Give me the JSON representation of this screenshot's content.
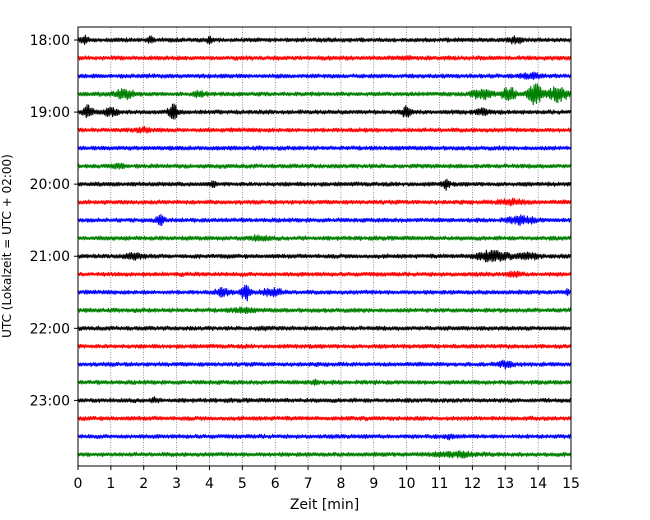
{
  "chart_data": {
    "type": "line",
    "title": "",
    "xlabel": "Zeit  [min]",
    "ylabel": "UTC (Lokalzeit = UTC + 02:00)",
    "xlim": [
      0,
      15
    ],
    "x_ticks": [
      0,
      1,
      2,
      3,
      4,
      5,
      6,
      7,
      8,
      9,
      10,
      11,
      12,
      13,
      14,
      15
    ],
    "y_ticks": [
      "18:00",
      "19:00",
      "20:00",
      "21:00",
      "22:00",
      "23:00"
    ],
    "grid": "vertical-dotted",
    "trace_interval_minutes": 15,
    "color_cycle": [
      "#000000",
      "#ff0000",
      "#0000ff",
      "#008000"
    ],
    "traces": [
      {
        "start": "18:00",
        "color": "#000000",
        "events": [
          {
            "t": 0.2,
            "amp": 1.5,
            "w": 0.1
          },
          {
            "t": 2.2,
            "amp": 1.0,
            "w": 0.1
          },
          {
            "t": 4.0,
            "amp": 1.0,
            "w": 0.1
          },
          {
            "t": 13.3,
            "amp": 1.2,
            "w": 0.2
          }
        ]
      },
      {
        "start": "18:15",
        "color": "#ff0000",
        "events": [
          {
            "t": 10.0,
            "amp": 0.8,
            "w": 0.15
          }
        ]
      },
      {
        "start": "18:30",
        "color": "#0000ff",
        "events": [
          {
            "t": 13.8,
            "amp": 1.0,
            "w": 0.3
          }
        ]
      },
      {
        "start": "18:45",
        "color": "#008000",
        "events": [
          {
            "t": 1.4,
            "amp": 1.8,
            "w": 0.3
          },
          {
            "t": 3.7,
            "amp": 1.0,
            "w": 0.2
          },
          {
            "t": 12.3,
            "amp": 2.0,
            "w": 0.3
          },
          {
            "t": 13.1,
            "amp": 3.0,
            "w": 0.2
          },
          {
            "t": 13.9,
            "amp": 4.5,
            "w": 0.2
          },
          {
            "t": 14.6,
            "amp": 3.0,
            "w": 0.3
          }
        ]
      },
      {
        "start": "19:00",
        "color": "#000000",
        "events": [
          {
            "t": 0.3,
            "amp": 2.5,
            "w": 0.15
          },
          {
            "t": 1.0,
            "amp": 1.5,
            "w": 0.2
          },
          {
            "t": 2.9,
            "amp": 3.0,
            "w": 0.15
          },
          {
            "t": 10.0,
            "amp": 2.5,
            "w": 0.12
          },
          {
            "t": 12.3,
            "amp": 1.2,
            "w": 0.2
          }
        ]
      },
      {
        "start": "19:15",
        "color": "#ff0000",
        "events": [
          {
            "t": 2.0,
            "amp": 0.8,
            "w": 0.2
          }
        ]
      },
      {
        "start": "19:30",
        "color": "#0000ff",
        "events": []
      },
      {
        "start": "19:45",
        "color": "#008000",
        "events": [
          {
            "t": 1.2,
            "amp": 0.8,
            "w": 0.2
          }
        ]
      },
      {
        "start": "20:00",
        "color": "#000000",
        "events": [
          {
            "t": 4.1,
            "amp": 1.0,
            "w": 0.1
          },
          {
            "t": 11.2,
            "amp": 2.2,
            "w": 0.1
          }
        ]
      },
      {
        "start": "20:15",
        "color": "#ff0000",
        "events": [
          {
            "t": 13.2,
            "amp": 1.0,
            "w": 0.4
          }
        ]
      },
      {
        "start": "20:30",
        "color": "#0000ff",
        "events": [
          {
            "t": 2.5,
            "amp": 2.0,
            "w": 0.12
          },
          {
            "t": 13.5,
            "amp": 1.5,
            "w": 0.4
          }
        ]
      },
      {
        "start": "20:45",
        "color": "#008000",
        "events": [
          {
            "t": 5.5,
            "amp": 0.8,
            "w": 0.3
          }
        ]
      },
      {
        "start": "21:00",
        "color": "#000000",
        "events": [
          {
            "t": 1.7,
            "amp": 1.2,
            "w": 0.3
          },
          {
            "t": 12.6,
            "amp": 2.0,
            "w": 0.5
          },
          {
            "t": 13.7,
            "amp": 1.2,
            "w": 0.3
          }
        ]
      },
      {
        "start": "21:15",
        "color": "#ff0000",
        "events": [
          {
            "t": 13.3,
            "amp": 0.8,
            "w": 0.2
          }
        ]
      },
      {
        "start": "21:30",
        "color": "#0000ff",
        "events": [
          {
            "t": 4.4,
            "amp": 1.5,
            "w": 0.2
          },
          {
            "t": 5.1,
            "amp": 3.5,
            "w": 0.15
          },
          {
            "t": 5.9,
            "amp": 1.5,
            "w": 0.3
          },
          {
            "t": 14.9,
            "amp": 1.0,
            "w": 0.05
          }
        ]
      },
      {
        "start": "21:45",
        "color": "#008000",
        "events": [
          {
            "t": 5.0,
            "amp": 0.8,
            "w": 0.3
          }
        ]
      },
      {
        "start": "22:00",
        "color": "#000000",
        "events": [
          {
            "t": 5.6,
            "amp": 0.8,
            "w": 0.1
          }
        ]
      },
      {
        "start": "22:15",
        "color": "#ff0000",
        "events": []
      },
      {
        "start": "22:30",
        "color": "#0000ff",
        "events": [
          {
            "t": 13.0,
            "amp": 1.2,
            "w": 0.2
          }
        ]
      },
      {
        "start": "22:45",
        "color": "#008000",
        "events": [
          {
            "t": 7.2,
            "amp": 1.0,
            "w": 0.1
          }
        ]
      },
      {
        "start": "23:00",
        "color": "#000000",
        "events": [
          {
            "t": 2.3,
            "amp": 0.8,
            "w": 0.1
          }
        ]
      },
      {
        "start": "23:15",
        "color": "#ff0000",
        "events": []
      },
      {
        "start": "23:30",
        "color": "#0000ff",
        "events": [
          {
            "t": 11.3,
            "amp": 0.8,
            "w": 0.1
          }
        ]
      },
      {
        "start": "23:45",
        "color": "#008000",
        "events": [
          {
            "t": 11.5,
            "amp": 0.8,
            "w": 0.6
          }
        ]
      }
    ]
  }
}
